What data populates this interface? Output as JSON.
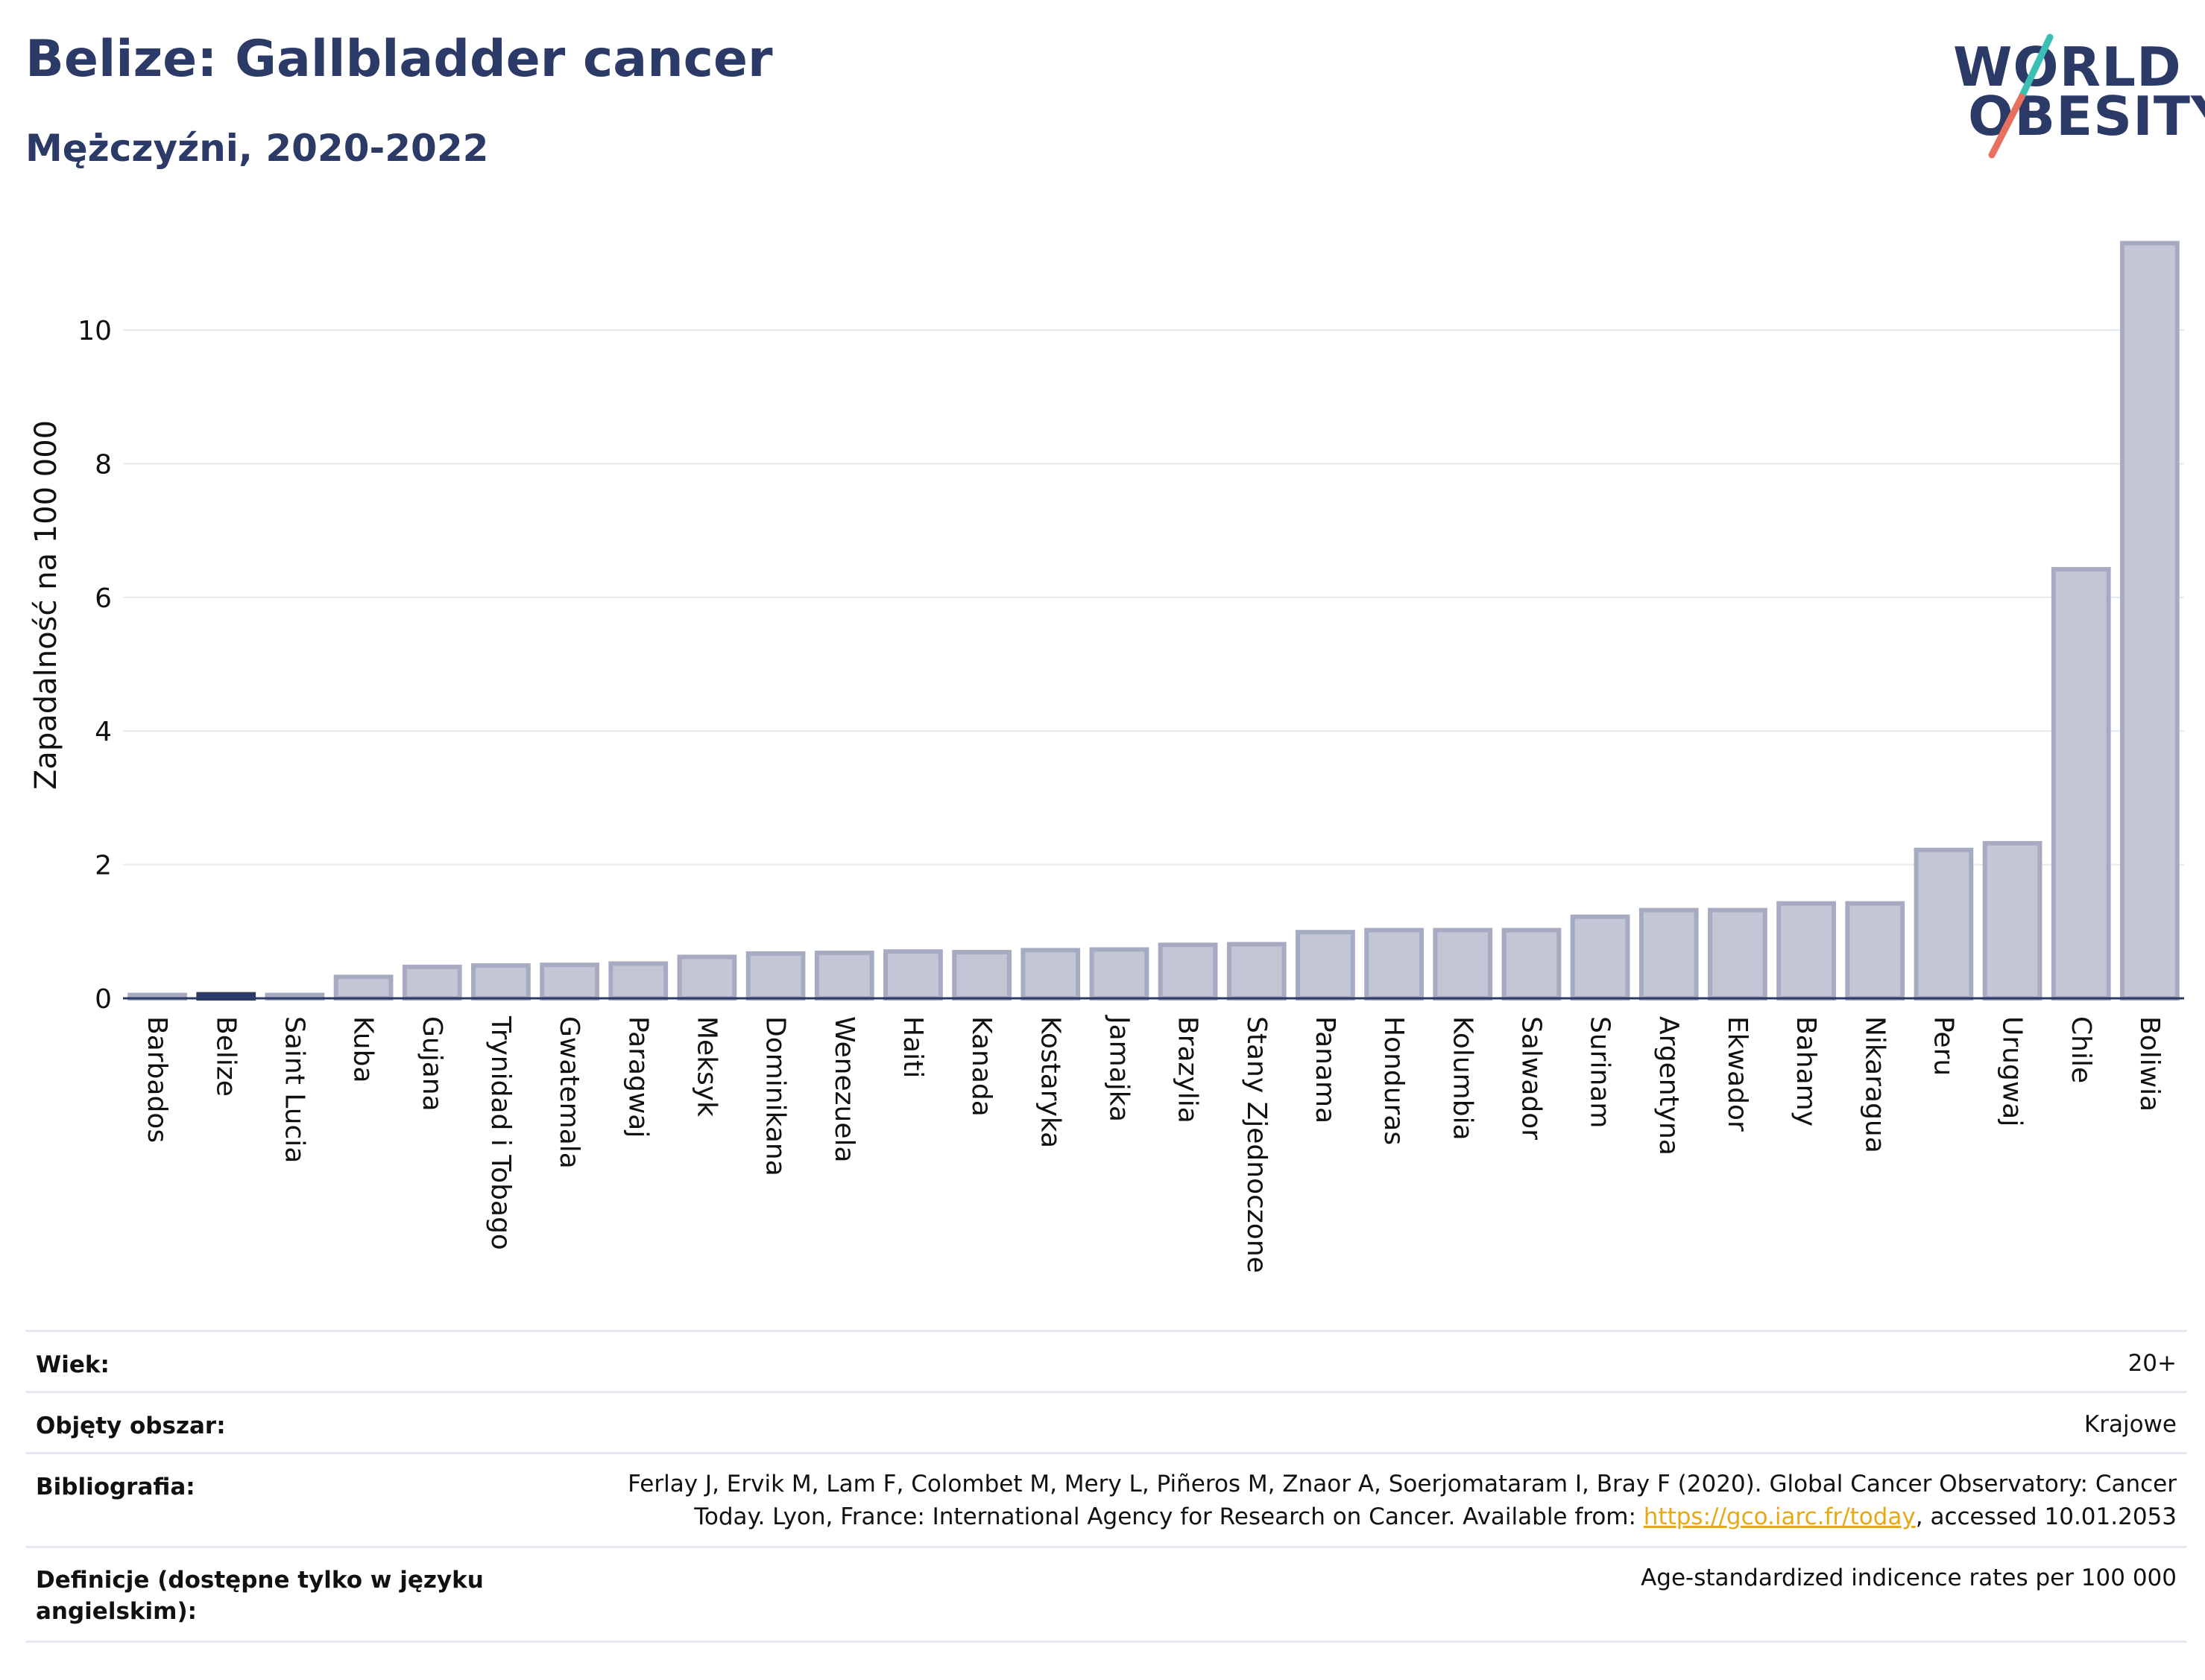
{
  "header": {
    "title": "Belize: Gallbladder cancer",
    "subtitle": "Mężczyźni, 2020-2022",
    "logo_line1": "WORLD",
    "logo_line2": "OBESITY"
  },
  "colors": {
    "title": "#2b3a67",
    "bar_fill": "#c3c7d5",
    "bar_stroke": "#a6abc2",
    "highlight": "#2b3a67",
    "logo_teal": "#3bbfb5",
    "logo_red": "#e8705e",
    "link": "#e6a817"
  },
  "chart_data": {
    "type": "bar",
    "ylabel": "Zapadalność na 100 000",
    "ylim": [
      0,
      11.5
    ],
    "yticks": [
      0,
      2,
      4,
      6,
      8,
      10
    ],
    "grid": true,
    "highlight_category": "Belize",
    "categories": [
      "Barbados",
      "Belize",
      "Saint Lucia",
      "Kuba",
      "Gujana",
      "Trynidad i Tobago",
      "Gwatemala",
      "Paragwaj",
      "Meksyk",
      "Dominikana",
      "Wenezuela",
      "Haiti",
      "Kanada",
      "Kostaryka",
      "Jamajka",
      "Brazylia",
      "Stany Zjednoczone",
      "Panama",
      "Honduras",
      "Kolumbia",
      "Salwador",
      "Surinam",
      "Argentyna",
      "Ekwador",
      "Bahamy",
      "Nikaragua",
      "Peru",
      "Urugwaj",
      "Chile",
      "Boliwia"
    ],
    "values": [
      0.05,
      0.06,
      0.05,
      0.32,
      0.47,
      0.49,
      0.5,
      0.52,
      0.62,
      0.67,
      0.68,
      0.7,
      0.69,
      0.72,
      0.73,
      0.8,
      0.81,
      0.99,
      1.02,
      1.02,
      1.02,
      1.22,
      1.32,
      1.32,
      1.42,
      1.42,
      2.22,
      2.32,
      6.42,
      11.3
    ]
  },
  "info": {
    "age_label": "Wiek:",
    "age_value": "20+",
    "area_label": "Objęty obszar:",
    "area_value": "Krajowe",
    "bib_label": "Bibliografia:",
    "bib_line1": "Ferlay J, Ervik M, Lam F, Colombet M, Mery L, Piñeros M, Znaor A, Soerjomataram I, Bray F (2020). Global Cancer Observatory: Cancer",
    "bib_line2_pre": "Today. Lyon, France: International Agency for Research on Cancer. Available from: ",
    "bib_link": "https://gco.iarc.fr/today",
    "bib_line2_post": ", accessed 10.01.2053",
    "def_label_line1": "Definicje (dostępne tylko w języku",
    "def_label_line2": "angielskim):",
    "def_value": "Age-standardized indicence rates per 100 000"
  }
}
